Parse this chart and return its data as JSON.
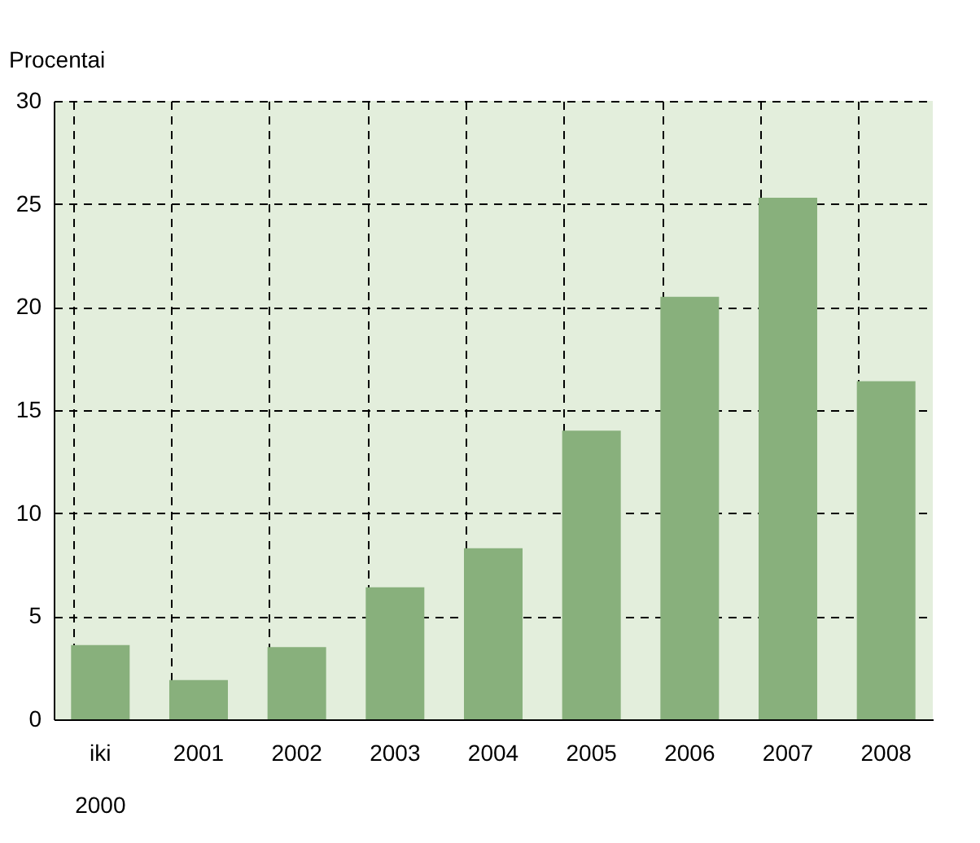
{
  "chart_data": {
    "type": "bar",
    "ylabel": "Procentai",
    "categories": [
      "iki 2000",
      "2001",
      "2002",
      "2003",
      "2004",
      "2005",
      "2006",
      "2007",
      "2008"
    ],
    "values": [
      3.6,
      1.9,
      3.5,
      6.4,
      8.3,
      14.0,
      20.5,
      25.3,
      16.4
    ],
    "color": "#88b07c",
    "ylim": [
      0,
      30
    ],
    "yticks": [
      0,
      5,
      10,
      15,
      20,
      25,
      30
    ],
    "grid": true
  }
}
